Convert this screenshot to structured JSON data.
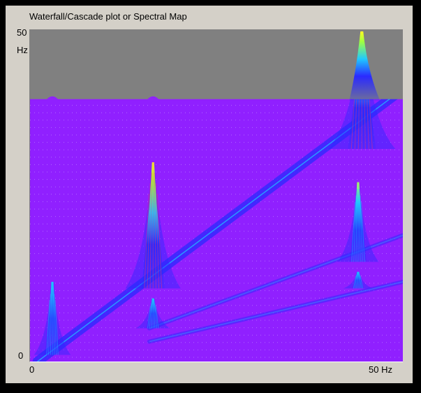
{
  "window": {
    "title": "Waterfall/Cascade plot or Spectral Map"
  },
  "chart_data": {
    "type": "heatmap",
    "title": "Waterfall/Cascade plot or Spectral Map",
    "y_axis": {
      "unit": "Hz",
      "min_label": "0",
      "max_label": "50",
      "range": [
        0,
        50
      ]
    },
    "x_axis": {
      "min_label": "0",
      "max_label": "50 Hz",
      "range": [
        0,
        50
      ]
    },
    "colors": {
      "background": "#9020ff",
      "unsampled_region": "#808080",
      "low": "#2a2aff",
      "mid": "#20c8ff",
      "high": "#ffff20"
    },
    "unsampled_region_above_y": 39.5,
    "traces": [
      {
        "kind": "diagonal",
        "from": [
          1,
          0
        ],
        "to": [
          50,
          41
        ]
      },
      {
        "kind": "diagonal",
        "from": [
          16,
          5
        ],
        "to": [
          50,
          19
        ]
      },
      {
        "kind": "diagonal",
        "from": [
          16,
          3
        ],
        "to": [
          50,
          12
        ]
      }
    ],
    "peaks": [
      {
        "x": 3,
        "y_base": 1,
        "y_top": 12,
        "strength": 0.35
      },
      {
        "x": 16.5,
        "y_base": 11,
        "y_top": 30,
        "strength": 0.75
      },
      {
        "x": 16.5,
        "y_base": 5,
        "y_top": 9.5,
        "strength": 0.3
      },
      {
        "x": 44.5,
        "y_base": 32,
        "y_top": 49.7,
        "strength": 1.0
      },
      {
        "x": 44,
        "y_base": 15,
        "y_top": 27,
        "strength": 0.45
      },
      {
        "x": 44,
        "y_base": 11,
        "y_top": 13.5,
        "strength": 0.2
      }
    ],
    "baseline_bumps": [
      3,
      16.5
    ]
  }
}
